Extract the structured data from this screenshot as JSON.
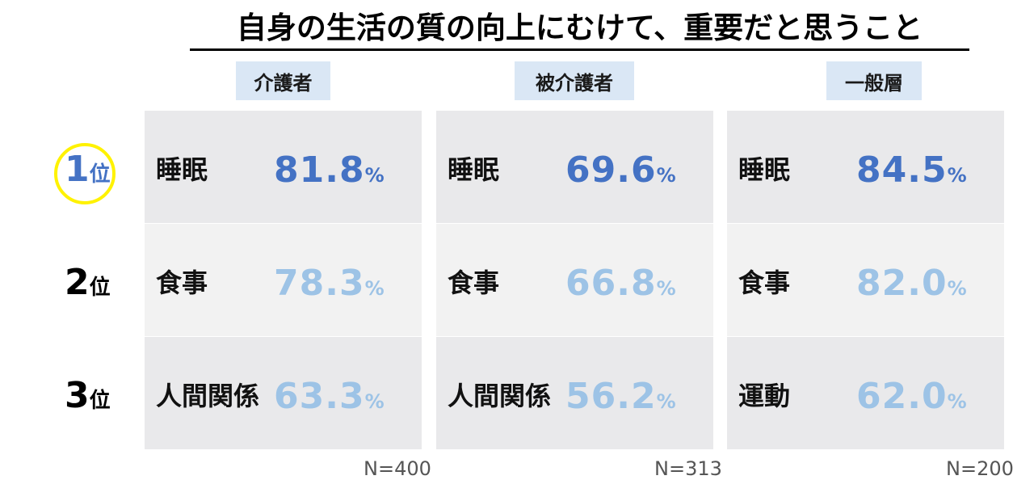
{
  "chart_data": {
    "type": "table",
    "title": "自身の生活の質の向上にむけて、重要だと思うこと",
    "rank_labels": [
      {
        "num": "1",
        "unit": "位"
      },
      {
        "num": "2",
        "unit": "位"
      },
      {
        "num": "3",
        "unit": "位"
      }
    ],
    "percent_sign": "%",
    "groups": [
      {
        "name": "介護者",
        "n": "N=400",
        "rows": [
          {
            "item": "睡眠",
            "value": "81.8"
          },
          {
            "item": "食事",
            "value": "78.3"
          },
          {
            "item": "人間関係",
            "value": "63.3"
          }
        ]
      },
      {
        "name": "被介護者",
        "n": "N=313",
        "rows": [
          {
            "item": "睡眠",
            "value": "69.6"
          },
          {
            "item": "食事",
            "value": "66.8"
          },
          {
            "item": "人間関係",
            "value": "56.2"
          }
        ]
      },
      {
        "name": "一般層",
        "n": "N=200",
        "rows": [
          {
            "item": "睡眠",
            "value": "84.5"
          },
          {
            "item": "食事",
            "value": "82.0"
          },
          {
            "item": "運動",
            "value": "62.0"
          }
        ]
      }
    ],
    "colors": {
      "top_value": "#4472c4",
      "other_value": "#9dc3e6",
      "header_bg": "#dae7f5",
      "highlight_circle": "#fff200"
    }
  }
}
